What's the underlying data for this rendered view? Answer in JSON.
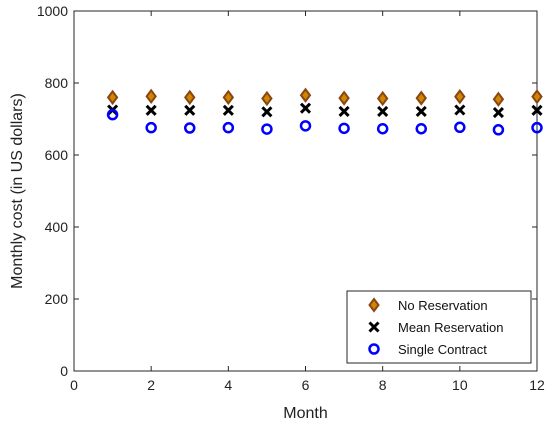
{
  "chart_data": {
    "type": "scatter",
    "title": "",
    "xlabel": "Month",
    "ylabel": "Monthly cost (in US dollars)",
    "xlim": [
      0,
      12
    ],
    "ylim": [
      0,
      1000
    ],
    "xticks": [
      0,
      2,
      4,
      6,
      8,
      10,
      12
    ],
    "yticks": [
      0,
      200,
      400,
      600,
      800,
      1000
    ],
    "grid": false,
    "legend_position": "bottom-right",
    "x": [
      1,
      2,
      3,
      4,
      5,
      6,
      7,
      8,
      9,
      10,
      11,
      12
    ],
    "series": [
      {
        "name": "No Reservation",
        "marker": "diamond",
        "color": "#8B4513",
        "fill": "#CC8800",
        "values": [
          760,
          763,
          760,
          760,
          757,
          766,
          758,
          757,
          758,
          762,
          755,
          762
        ]
      },
      {
        "name": "Mean Reservation",
        "marker": "x",
        "color": "#000000",
        "values": [
          725,
          724,
          724,
          724,
          720,
          730,
          721,
          721,
          721,
          725,
          718,
          724
        ]
      },
      {
        "name": "Single Contract",
        "marker": "circle",
        "color": "#0000FF",
        "values": [
          712,
          676,
          675,
          676,
          672,
          681,
          674,
          673,
          673,
          677,
          670,
          676
        ]
      }
    ]
  }
}
